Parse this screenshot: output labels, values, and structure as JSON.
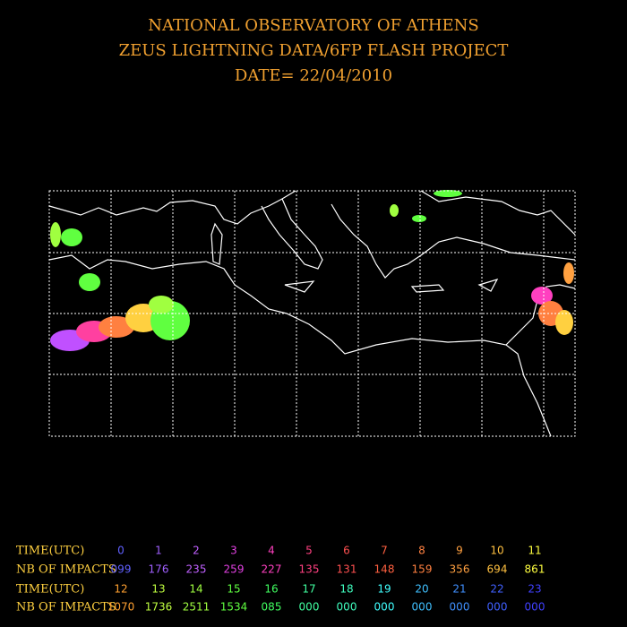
{
  "header": {
    "lines": [
      "NATIONAL OBSERVATORY OF ATHENS",
      "ZEUS LIGHTNING DATA/6FP FLASH PROJECT",
      "DATE= 22/04/2010"
    ]
  },
  "table": {
    "rows": [
      {
        "label": "TIME(UTC)",
        "cells": [
          "0",
          "1",
          "2",
          "3",
          "4",
          "5",
          "6",
          "7",
          "8",
          "9",
          "10",
          "11"
        ]
      },
      {
        "label": "NB OF IMPACTS",
        "cells": [
          "099",
          "176",
          "235",
          "259",
          "227",
          "135",
          "131",
          "148",
          "159",
          "356",
          "694",
          "861"
        ]
      },
      {
        "label": "TIME(UTC)",
        "cells": [
          "12",
          "13",
          "14",
          "15",
          "16",
          "17",
          "18",
          "19",
          "20",
          "21",
          "22",
          "23"
        ]
      },
      {
        "label": "NB OF IMPACTS",
        "cells": [
          "1070",
          "1736",
          "2511",
          "1534",
          "085",
          "000",
          "000",
          "000",
          "000",
          "000",
          "000",
          "000"
        ]
      }
    ]
  }
}
